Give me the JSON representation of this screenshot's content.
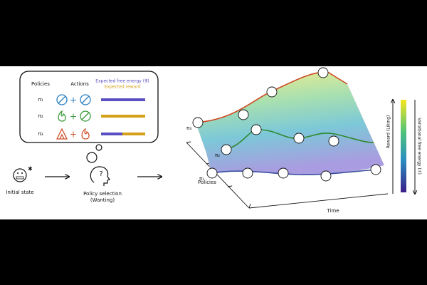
{
  "panel": {
    "headers": [
      "Policies",
      "Actions"
    ],
    "legend": {
      "free_energy": "Expected free energy (𝒢)",
      "reward": "Expected reward"
    },
    "policies": [
      "π₁",
      "π₂",
      "π₃"
    ]
  },
  "flow": {
    "initial": "Initial state",
    "selection": "Policy selection",
    "selection_note": "(Wanting)"
  },
  "landscape": {
    "axis_policies": "Policies",
    "axis_time": "Time",
    "surface_policies": [
      "π₃",
      "π₂",
      "π₁"
    ],
    "colorbar_left": "Reward (Liking)",
    "colorbar_right": "Variational free energy (ℱ)"
  }
}
